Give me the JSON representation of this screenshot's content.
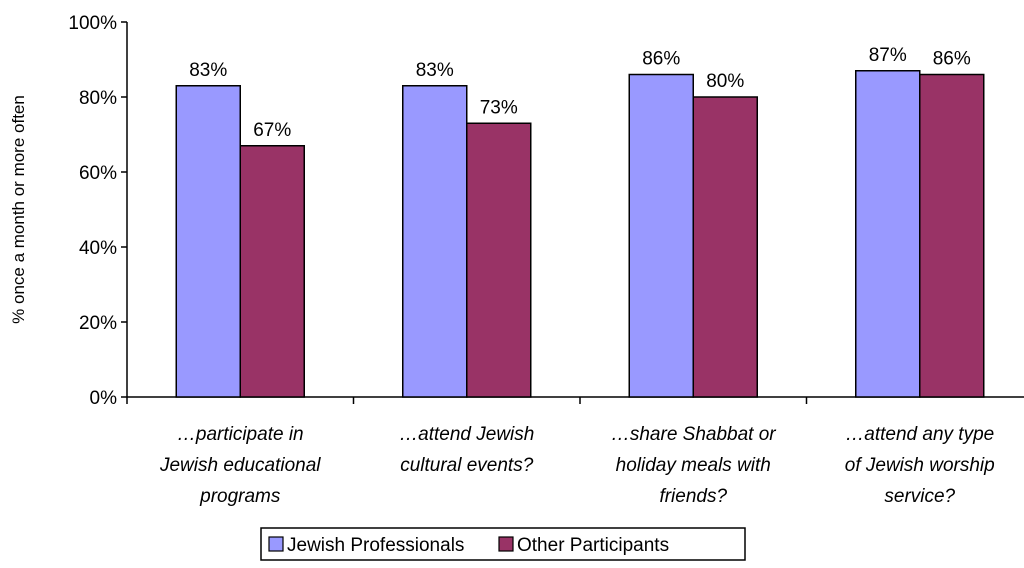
{
  "chart_data": {
    "type": "bar",
    "title": "",
    "xlabel": "",
    "ylabel": "% once a month or more often",
    "ylim": [
      0,
      100
    ],
    "yticks": [
      "0%",
      "20%",
      "40%",
      "60%",
      "80%",
      "100%"
    ],
    "ytick_values": [
      0,
      20,
      40,
      60,
      80,
      100
    ],
    "grid": false,
    "legend_position": "bottom",
    "categories": [
      [
        "…participate in",
        "Jewish educational",
        "programs"
      ],
      [
        "…attend Jewish",
        "cultural events?"
      ],
      [
        "…share Shabbat or",
        "holiday meals with",
        "friends?"
      ],
      [
        "…attend any type",
        "of Jewish worship",
        "service?"
      ]
    ],
    "series": [
      {
        "name": "Jewish Professionals",
        "color": "#9999ff",
        "values": [
          83,
          83,
          86,
          87
        ],
        "labels": [
          "83%",
          "83%",
          "86%",
          "87%"
        ]
      },
      {
        "name": "Other Participants",
        "color": "#993366",
        "values": [
          67,
          73,
          80,
          86
        ],
        "labels": [
          "67%",
          "73%",
          "80%",
          "86%"
        ]
      }
    ]
  }
}
